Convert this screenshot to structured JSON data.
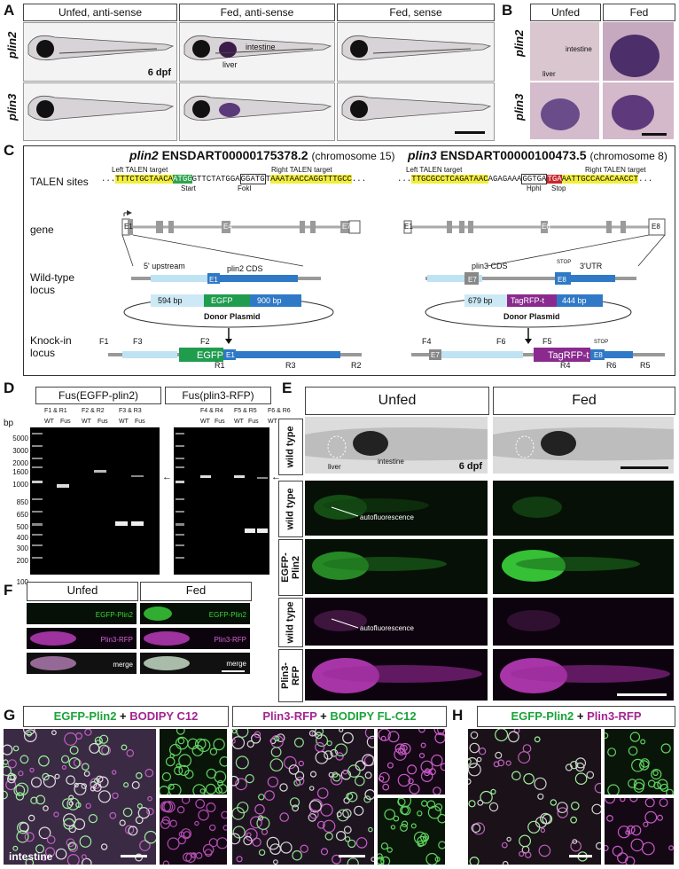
{
  "panels": {
    "A": {
      "letter": "A",
      "columns": [
        "Unfed, anti-sense",
        "Fed, anti-sense",
        "Fed, sense"
      ],
      "rows": [
        "plin2",
        "plin3"
      ],
      "age_label": "6 dpf",
      "annotations": [
        "intestine",
        "liver"
      ]
    },
    "B": {
      "letter": "B",
      "columns": [
        "Unfed",
        "Fed"
      ],
      "rows": [
        "plin2",
        "plin3"
      ],
      "annotations": [
        "intestine",
        "liver"
      ]
    },
    "C": {
      "letter": "C",
      "left_gene_name": "plin2",
      "left_gene_id": "ENSDART00000175378.2",
      "left_chrom": "(chromosome 15)",
      "right_gene_name": "plin3",
      "right_gene_id": "ENSDART00000100473.5",
      "right_chrom": "(chromosome 8)",
      "row_labels": [
        "TALEN sites",
        "gene",
        "Wild-type\nlocus",
        "Knock-in\nlocus"
      ],
      "left_talen_target": "Left TALEN target",
      "right_talen_target": "Right TALEN target",
      "left_seq_a": "TTTCTGCTAACA",
      "left_seq_start": "ATGG",
      "left_seq_b": "GTTCTATGGA",
      "left_seq_fok": "GGATG",
      "left_seq_c": "T",
      "left_seq_d": "AAATAACCAGGTTTGCC",
      "left_start_lbl": "Start",
      "left_fok_lbl": "FokI",
      "right_seq_a": "TTGCGCCTCAGATAAC",
      "right_seq_b": "AGAGAAA",
      "right_seq_hph": "GGTGA",
      "right_seq_stop": "TGA",
      "right_seq_c": "AATTGCCACACAACCT",
      "right_hph_lbl": "HphI",
      "right_stop_lbl": "Stop",
      "exons_left": [
        "E1",
        "E4",
        "E7"
      ],
      "exons_right": [
        "E1",
        "E6",
        "E8"
      ],
      "wt_left": {
        "upstream": "5' upstream",
        "cds": "plin2 CDS",
        "exon": "E1",
        "arm1": "594 bp",
        "egfp": "EGFP",
        "arm2": "900 bp",
        "donor": "Donor Plasmid"
      },
      "wt_right": {
        "cds": "plin3 CDS",
        "stop": "STOP",
        "utr": "3'UTR",
        "exon7": "E7",
        "exon8": "E8",
        "arm1": "679 bp",
        "rfp": "TagRFP-t",
        "arm2": "444 bp",
        "donor": "Donor Plasmid"
      },
      "ki_left": {
        "primers": [
          "F1",
          "F3",
          "F2",
          "R1",
          "R3",
          "R2"
        ],
        "egfp": "EGFP",
        "exon": "E1"
      },
      "ki_right": {
        "primers": [
          "F4",
          "F6",
          "F5",
          "R4",
          "R6",
          "R5"
        ],
        "rfp": "TagRFP-t",
        "exon7": "E7",
        "exon8": "E8",
        "stop": "STOP"
      }
    },
    "D": {
      "letter": "D",
      "gel1_title": "Fus(EGFP-plin2)",
      "gel2_title": "Fus(plin3-RFP)",
      "gel1_pairs": [
        "F1 & R1",
        "F2 & R2",
        "F3 & R3"
      ],
      "gel2_pairs": [
        "F4 & R4",
        "F5 & R5",
        "F6 & R6"
      ],
      "lane_labels": [
        "WT",
        "Fus"
      ],
      "unit": "bp",
      "ladder": [
        "5000",
        "3000",
        "2000",
        "1600",
        "1000",
        "850",
        "650",
        "500",
        "400",
        "300",
        "200",
        "100"
      ]
    },
    "E": {
      "letter": "E",
      "columns": [
        "Unfed",
        "Fed"
      ],
      "row_labels": [
        "wild type",
        "wild type",
        "EGFP-\nPlin2",
        "wild type",
        "Plin3-\nRFP"
      ],
      "bf_annotations": [
        "liver",
        "intestine"
      ],
      "age_label": "6 dpf",
      "autofluor": "autofluorescence"
    },
    "F": {
      "letter": "F",
      "columns": [
        "Unfed",
        "Fed"
      ],
      "channels": [
        "EGFP-Plin2",
        "Plin3-RFP",
        "merge"
      ]
    },
    "G": {
      "letter": "G",
      "title1_a": "EGFP-Plin2",
      "title1_plus": " + ",
      "title1_b": "BODIPY C12",
      "title2_a": "Plin3-RFP",
      "title2_plus": " + ",
      "title2_b": "BODIPY FL-C12",
      "tissue_label": "intestine"
    },
    "H": {
      "letter": "H",
      "title_a": "EGFP-Plin2",
      "title_plus": " + ",
      "title_b": "Plin3-RFP"
    }
  }
}
